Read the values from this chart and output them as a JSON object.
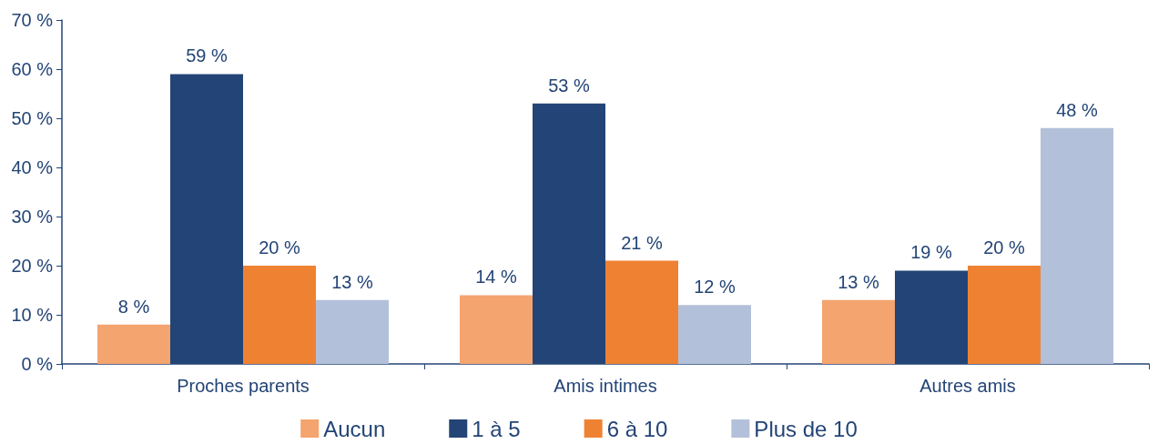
{
  "chart_data": {
    "type": "bar",
    "categories": [
      "Proches parents",
      "Amis intimes",
      "Autres amis"
    ],
    "series": [
      {
        "name": "Aucun",
        "color": "#f4a46e",
        "values": [
          8,
          14,
          13
        ],
        "value_labels": [
          "8 %",
          "14 %",
          "13 %"
        ]
      },
      {
        "name": "1 à 5",
        "color": "#234476",
        "values": [
          59,
          53,
          19
        ],
        "value_labels": [
          "59 %",
          "53 %",
          "19 %"
        ]
      },
      {
        "name": "6 à 10",
        "color": "#ef8232",
        "values": [
          20,
          21,
          20
        ],
        "value_labels": [
          "20 %",
          "21 %",
          "20 %"
        ]
      },
      {
        "name": "Plus de 10",
        "color": "#b3c0d9",
        "values": [
          13,
          12,
          48
        ],
        "value_labels": [
          "13 %",
          "12 %",
          "48 %"
        ]
      }
    ],
    "ylim": [
      0,
      70
    ],
    "yticks": [
      {
        "value": 0,
        "label": "0 %"
      },
      {
        "value": 10,
        "label": "10 %"
      },
      {
        "value": 20,
        "label": "20 %"
      },
      {
        "value": 30,
        "label": "30 %"
      },
      {
        "value": 40,
        "label": "40 %"
      },
      {
        "value": 50,
        "label": "50 %"
      },
      {
        "value": 60,
        "label": "60 %"
      },
      {
        "value": 70,
        "label": "70 %"
      }
    ],
    "grid": false,
    "legend": "bottom"
  }
}
